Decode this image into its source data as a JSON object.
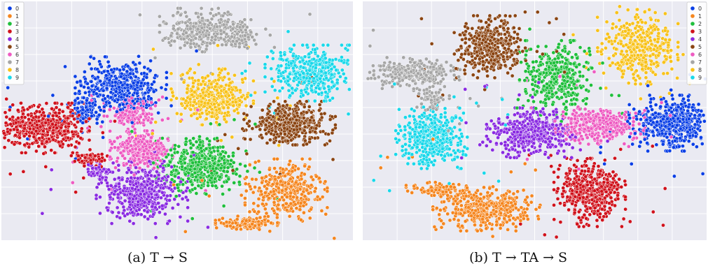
{
  "chart_data": [
    {
      "type": "scatter",
      "caption": "(a) T → S",
      "legend_placement": "top-left",
      "grid": true,
      "background": "#eaeaf2",
      "series": [
        {
          "name": "0",
          "color": "#0a3fe6",
          "clusters": [
            {
              "cx": 0.34,
              "cy": 0.36,
              "rx": 0.1,
              "ry": 0.1,
              "n": 430
            },
            {
              "cx": 0.24,
              "cy": 0.45,
              "rx": 0.04,
              "ry": 0.05,
              "n": 80
            }
          ]
        },
        {
          "name": "1",
          "color": "#f5861f",
          "clusters": [
            {
              "cx": 0.81,
              "cy": 0.79,
              "rx": 0.09,
              "ry": 0.1,
              "n": 340
            },
            {
              "cx": 0.7,
              "cy": 0.93,
              "rx": 0.07,
              "ry": 0.025,
              "n": 120
            }
          ]
        },
        {
          "name": "2",
          "color": "#1fbf3c",
          "clusters": [
            {
              "cx": 0.57,
              "cy": 0.69,
              "rx": 0.1,
              "ry": 0.09,
              "n": 460
            }
          ]
        },
        {
          "name": "3",
          "color": "#d0121c",
          "clusters": [
            {
              "cx": 0.12,
              "cy": 0.53,
              "rx": 0.1,
              "ry": 0.08,
              "n": 480
            },
            {
              "cx": 0.25,
              "cy": 0.66,
              "rx": 0.04,
              "ry": 0.03,
              "n": 60
            }
          ]
        },
        {
          "name": "4",
          "color": "#8a2be2",
          "clusters": [
            {
              "cx": 0.4,
              "cy": 0.8,
              "rx": 0.1,
              "ry": 0.1,
              "n": 470
            },
            {
              "cx": 0.27,
              "cy": 0.71,
              "rx": 0.03,
              "ry": 0.03,
              "n": 50
            }
          ]
        },
        {
          "name": "5",
          "color": "#8b4513",
          "clusters": [
            {
              "cx": 0.82,
              "cy": 0.51,
              "rx": 0.1,
              "ry": 0.07,
              "n": 440
            }
          ]
        },
        {
          "name": "6",
          "color": "#ee5bc2",
          "clusters": [
            {
              "cx": 0.4,
              "cy": 0.62,
              "rx": 0.07,
              "ry": 0.06,
              "n": 300
            },
            {
              "cx": 0.37,
              "cy": 0.47,
              "rx": 0.06,
              "ry": 0.05,
              "n": 150
            }
          ]
        },
        {
          "name": "7",
          "color": "#a6a6a6",
          "clusters": [
            {
              "cx": 0.58,
              "cy": 0.12,
              "rx": 0.1,
              "ry": 0.07,
              "n": 330
            },
            {
              "cx": 0.68,
              "cy": 0.15,
              "rx": 0.04,
              "ry": 0.04,
              "n": 70
            }
          ]
        },
        {
          "name": "8",
          "color": "#f8c21a",
          "clusters": [
            {
              "cx": 0.6,
              "cy": 0.4,
              "rx": 0.09,
              "ry": 0.09,
              "n": 360
            }
          ]
        },
        {
          "name": "9",
          "color": "#19d8ea",
          "clusters": [
            {
              "cx": 0.88,
              "cy": 0.3,
              "rx": 0.1,
              "ry": 0.09,
              "n": 400
            }
          ]
        }
      ]
    },
    {
      "type": "scatter",
      "caption": "(b) T → TA → S",
      "legend_placement": "top-right",
      "grid": true,
      "background": "#eaeaf2",
      "series": [
        {
          "name": "0",
          "color": "#0a3fe6",
          "clusters": [
            {
              "cx": 0.9,
              "cy": 0.51,
              "rx": 0.1,
              "ry": 0.09,
              "n": 460
            }
          ]
        },
        {
          "name": "1",
          "color": "#f5861f",
          "clusters": [
            {
              "cx": 0.36,
              "cy": 0.87,
              "rx": 0.12,
              "ry": 0.07,
              "n": 380
            },
            {
              "cx": 0.23,
              "cy": 0.79,
              "rx": 0.08,
              "ry": 0.025,
              "n": 100
            }
          ]
        },
        {
          "name": "2",
          "color": "#1fbf3c",
          "clusters": [
            {
              "cx": 0.56,
              "cy": 0.32,
              "rx": 0.08,
              "ry": 0.12,
              "n": 380
            }
          ]
        },
        {
          "name": "3",
          "color": "#d0121c",
          "clusters": [
            {
              "cx": 0.66,
              "cy": 0.8,
              "rx": 0.08,
              "ry": 0.11,
              "n": 460
            }
          ]
        },
        {
          "name": "4",
          "color": "#8a2be2",
          "clusters": [
            {
              "cx": 0.49,
              "cy": 0.55,
              "rx": 0.1,
              "ry": 0.08,
              "n": 440
            }
          ]
        },
        {
          "name": "5",
          "color": "#8b4513",
          "clusters": [
            {
              "cx": 0.37,
              "cy": 0.19,
              "rx": 0.08,
              "ry": 0.1,
              "n": 400
            }
          ]
        },
        {
          "name": "6",
          "color": "#ee5bc2",
          "clusters": [
            {
              "cx": 0.69,
              "cy": 0.52,
              "rx": 0.1,
              "ry": 0.06,
              "n": 380
            }
          ]
        },
        {
          "name": "7",
          "color": "#a6a6a6",
          "clusters": [
            {
              "cx": 0.14,
              "cy": 0.3,
              "rx": 0.11,
              "ry": 0.05,
              "n": 300
            },
            {
              "cx": 0.2,
              "cy": 0.4,
              "rx": 0.04,
              "ry": 0.05,
              "n": 70
            }
          ]
        },
        {
          "name": "8",
          "color": "#f8c21a",
          "clusters": [
            {
              "cx": 0.8,
              "cy": 0.19,
              "rx": 0.09,
              "ry": 0.12,
              "n": 360
            }
          ]
        },
        {
          "name": "9",
          "color": "#19d8ea",
          "clusters": [
            {
              "cx": 0.2,
              "cy": 0.57,
              "rx": 0.08,
              "ry": 0.1,
              "n": 440
            }
          ]
        }
      ]
    }
  ]
}
